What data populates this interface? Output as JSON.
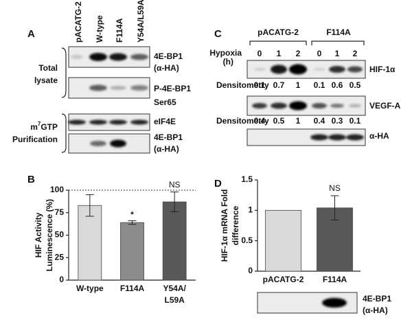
{
  "panel_A": {
    "panel_label": "A",
    "lanes": [
      "pACATG-2",
      "W-type",
      "F114A",
      "Y54A/L59A"
    ],
    "groups": [
      {
        "label": [
          "Total",
          "lysate"
        ],
        "blots": [
          {
            "label": [
              "4E-BP1",
              "(α-HA)"
            ]
          },
          {
            "label": [
              "P-4E-BP1",
              "Ser65"
            ]
          }
        ]
      },
      {
        "label": {
          "base": "m",
          "superscript": "7",
          "after": "GTP",
          "line2": "Purification"
        },
        "blots": [
          {
            "label": [
              "eIF4E"
            ]
          },
          {
            "label": [
              "4E-BP1",
              "(α-HA)"
            ]
          }
        ]
      }
    ]
  },
  "panel_C": {
    "panel_label": "C",
    "groups": [
      "pACATG-2",
      "F114A"
    ],
    "hypoxia_label": [
      "Hypoxia",
      "(h)"
    ],
    "timepoints": [
      0,
      1,
      2,
      0,
      1,
      2
    ],
    "densitometry_label": "Densitometry",
    "blots": [
      {
        "label": "HIF-1α",
        "densitometry": [
          0.1,
          0.7,
          1,
          0.1,
          0.6,
          0.5
        ]
      },
      {
        "label": "VEGF-A",
        "densitometry": [
          0.4,
          0.5,
          1,
          0.4,
          0.3,
          0.1
        ]
      },
      {
        "label": "α-HA"
      }
    ]
  },
  "chart_data": [
    {
      "type": "bar",
      "panel_label": "B",
      "y_label": [
        "HIF Activity",
        "Luminescence (%)"
      ],
      "categories": [
        [
          "W-type"
        ],
        [
          "F114A"
        ],
        [
          "Y54A/",
          "L59A"
        ]
      ],
      "values": [
        83,
        64,
        87
      ],
      "errors": [
        12,
        2,
        11
      ],
      "colors": [
        "#d9d9d9",
        "#8c8c8c",
        "#595959"
      ],
      "value_annotations": [
        null,
        "*",
        "NS"
      ],
      "reference_line": 100,
      "ylim": [
        0,
        100
      ],
      "yticks": [
        0,
        25,
        50,
        75,
        100
      ]
    },
    {
      "type": "bar",
      "panel_label": "D",
      "y_label": [
        "HIF-1α mRNA Fold",
        "difference"
      ],
      "categories": [
        [
          "pACATG-2"
        ],
        [
          "F114A"
        ]
      ],
      "values": [
        1,
        1.04
      ],
      "errors": [
        null,
        0.2
      ],
      "colors": [
        "#d9d9d9",
        "#595959"
      ],
      "value_annotations": [
        null,
        "NS"
      ],
      "ylim": [
        0,
        1.5
      ],
      "yticks": [
        0,
        0.5,
        1,
        1.5
      ],
      "blot_label": [
        "4E-BP1",
        "(α-HA)"
      ]
    }
  ]
}
